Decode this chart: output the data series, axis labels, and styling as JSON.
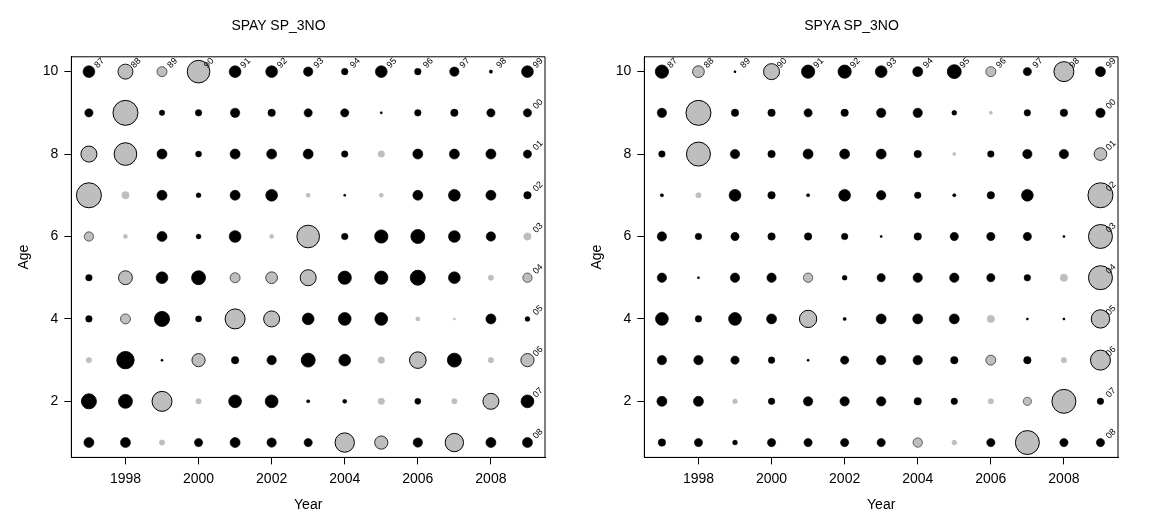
{
  "chart_data": [
    {
      "type": "bubble",
      "title": "SPAY SP_3NO",
      "xlabel": "Year",
      "ylabel": "Age",
      "xlim": [
        1996.52,
        2009.48
      ],
      "xticks": [
        1998,
        2000,
        2002,
        2004,
        2006,
        2008
      ],
      "ylim": [
        0.64,
        10.36
      ],
      "yticks": [
        2,
        4,
        6,
        8,
        10
      ],
      "grid": false,
      "legend": false,
      "marker": "circle",
      "series": [
        {
          "color": "#000000",
          "x": [
            1997,
            2001,
            2002,
            2003,
            2004,
            2005,
            2006,
            2007,
            2008,
            2009,
            1997,
            1999,
            2000,
            2001,
            2002,
            2003,
            2004,
            2005,
            2006,
            2007,
            2008,
            2009,
            1999,
            2000,
            2001,
            2002,
            2003,
            2004,
            2006,
            2007,
            2008,
            2009,
            1999,
            2000,
            2001,
            2002,
            2004,
            2006,
            2007,
            2008,
            2009,
            1999,
            2000,
            2001,
            2004,
            2005,
            2006,
            2007,
            2008,
            1997,
            1999,
            2000,
            2004,
            2005,
            2006,
            2007,
            1997,
            1999,
            2000,
            2003,
            2004,
            2005,
            2008,
            2009,
            1998,
            1999,
            2001,
            2002,
            2003,
            2004,
            2007,
            1997,
            1998,
            2001,
            2002,
            2003,
            2004,
            2006,
            2009,
            1997,
            1998,
            2000,
            2001,
            2002,
            2003,
            2006,
            2008,
            2009
          ],
          "values": [
            10,
            10,
            10,
            10,
            10,
            10,
            10,
            10,
            10,
            10,
            9,
            9,
            9,
            9,
            9,
            9,
            9,
            9,
            9,
            9,
            9,
            9,
            8,
            8,
            8,
            8,
            8,
            8,
            8,
            8,
            8,
            8,
            7,
            7,
            7,
            7,
            7,
            7,
            7,
            7,
            7,
            6,
            6,
            6,
            6,
            6,
            6,
            6,
            6,
            5,
            5,
            5,
            5,
            5,
            5,
            5,
            4,
            4,
            4,
            4,
            4,
            4,
            4,
            4,
            3,
            3,
            3,
            3,
            3,
            3,
            3,
            2,
            2,
            2,
            2,
            2,
            2,
            2,
            2,
            1,
            1,
            1,
            1,
            1,
            1,
            1,
            1,
            1
          ],
          "sizes": [
            0.22,
            0.22,
            0.22,
            0.14,
            0.07,
            0.22,
            0.07,
            0.14,
            0.02,
            0.22,
            0.11,
            0.05,
            0.07,
            0.14,
            0.09,
            0.11,
            0.11,
            0.01,
            0.07,
            0.09,
            0.11,
            0.11,
            0.16,
            0.06,
            0.16,
            0.16,
            0.16,
            0.07,
            0.16,
            0.16,
            0.16,
            0.11,
            0.16,
            0.04,
            0.16,
            0.22,
            0.01,
            0.16,
            0.22,
            0.16,
            0.09,
            0.16,
            0.04,
            0.22,
            0.07,
            0.28,
            0.31,
            0.22,
            0.14,
            0.07,
            0.22,
            0.31,
            0.28,
            0.28,
            0.36,
            0.22,
            0.07,
            0.36,
            0.06,
            0.22,
            0.26,
            0.26,
            0.16,
            0.04,
            0.48,
            0.01,
            0.09,
            0.14,
            0.31,
            0.22,
            0.31,
            0.36,
            0.31,
            0.26,
            0.26,
            0.02,
            0.03,
            0.06,
            0.26,
            0.16,
            0.16,
            0.11,
            0.16,
            0.14,
            0.11,
            0.14,
            0.16,
            0.16
          ]
        },
        {
          "color": "#bebebe",
          "x": [
            1998,
            1999,
            2000,
            1998,
            1997,
            1998,
            2005,
            1997,
            1998,
            2003,
            2005,
            1997,
            1998,
            2002,
            2003,
            2009,
            1998,
            2001,
            2002,
            2003,
            2008,
            2009,
            1998,
            2001,
            2002,
            2006,
            2007,
            1997,
            2000,
            2005,
            2006,
            2008,
            2009,
            1999,
            2000,
            2005,
            2007,
            2008,
            1999,
            2004,
            2005,
            2007
          ],
          "values": [
            10,
            10,
            10,
            9,
            8,
            8,
            8,
            7,
            7,
            7,
            7,
            6,
            6,
            6,
            6,
            6,
            5,
            5,
            5,
            5,
            5,
            5,
            4,
            4,
            4,
            4,
            4,
            3,
            3,
            3,
            3,
            3,
            3,
            2,
            2,
            2,
            2,
            2,
            1,
            1,
            1,
            1
          ],
          "sizes": [
            0.36,
            0.16,
            0.82,
            1,
            0.41,
            0.82,
            0.07,
            1,
            0.09,
            0.03,
            0.03,
            0.14,
            0.03,
            0.03,
            0.82,
            0.09,
            0.31,
            0.16,
            0.22,
            0.41,
            0.05,
            0.14,
            0.16,
            0.64,
            0.41,
            0.03,
            0.01,
            0.05,
            0.28,
            0.07,
            0.44,
            0.05,
            0.28,
            0.64,
            0.05,
            0.07,
            0.05,
            0.41,
            0.05,
            0.6,
            0.28,
            0.54
          ]
        }
      ],
      "annotations": [
        {
          "text": "87",
          "x": 1997,
          "y": 10
        },
        {
          "text": "88",
          "x": 1998,
          "y": 10
        },
        {
          "text": "89",
          "x": 1999,
          "y": 10
        },
        {
          "text": "90",
          "x": 2000,
          "y": 10
        },
        {
          "text": "91",
          "x": 2001,
          "y": 10
        },
        {
          "text": "92",
          "x": 2002,
          "y": 10
        },
        {
          "text": "93",
          "x": 2003,
          "y": 10
        },
        {
          "text": "94",
          "x": 2004,
          "y": 10
        },
        {
          "text": "95",
          "x": 2005,
          "y": 10
        },
        {
          "text": "96",
          "x": 2006,
          "y": 10
        },
        {
          "text": "97",
          "x": 2007,
          "y": 10
        },
        {
          "text": "98",
          "x": 2008,
          "y": 10
        },
        {
          "text": "99",
          "x": 2009,
          "y": 10
        },
        {
          "text": "00",
          "x": 2009,
          "y": 9
        },
        {
          "text": "01",
          "x": 2009,
          "y": 8
        },
        {
          "text": "02",
          "x": 2009,
          "y": 7
        },
        {
          "text": "03",
          "x": 2009,
          "y": 6
        },
        {
          "text": "04",
          "x": 2009,
          "y": 5
        },
        {
          "text": "05",
          "x": 2009,
          "y": 4
        },
        {
          "text": "06",
          "x": 2009,
          "y": 3
        },
        {
          "text": "07",
          "x": 2009,
          "y": 2
        },
        {
          "text": "08",
          "x": 2009,
          "y": 1
        }
      ]
    },
    {
      "type": "bubble",
      "title": "SPYA SP_3NO",
      "xlabel": "Year",
      "ylabel": "Age",
      "xlim": [
        1996.52,
        2009.48
      ],
      "xticks": [
        1998,
        2000,
        2002,
        2004,
        2006,
        2008
      ],
      "ylim": [
        0.64,
        10.36
      ],
      "yticks": [
        2,
        4,
        6,
        8,
        10
      ],
      "grid": false,
      "legend": false,
      "marker": "circle",
      "series": [
        {
          "color": "#000000",
          "x": [
            1997,
            1999,
            2001,
            2002,
            2003,
            2004,
            2005,
            2007,
            2009,
            1997,
            1999,
            2000,
            2001,
            2002,
            2003,
            2004,
            2005,
            2007,
            2008,
            2009,
            1997,
            1999,
            2000,
            2001,
            2002,
            2003,
            2004,
            2006,
            2007,
            2008,
            1997,
            1999,
            2000,
            2001,
            2002,
            2003,
            2004,
            2005,
            2006,
            2007,
            1997,
            1998,
            1999,
            2000,
            2001,
            2002,
            2003,
            2004,
            2005,
            2006,
            2007,
            2008,
            1997,
            1998,
            1999,
            2000,
            2002,
            2003,
            2004,
            2005,
            2006,
            2007,
            1997,
            1998,
            1999,
            2000,
            2002,
            2003,
            2004,
            2005,
            2007,
            2008,
            1997,
            1998,
            1999,
            2000,
            2001,
            2002,
            2003,
            2004,
            2005,
            2007,
            1997,
            1998,
            2000,
            2001,
            2002,
            2003,
            2004,
            2005,
            2009,
            1997,
            1998,
            1999,
            2000,
            2001,
            2002,
            2003,
            2006,
            2008,
            2009
          ],
          "values": [
            10,
            10,
            10,
            10,
            10,
            10,
            10,
            10,
            10,
            9,
            9,
            9,
            9,
            9,
            9,
            9,
            9,
            9,
            9,
            9,
            8,
            8,
            8,
            8,
            8,
            8,
            8,
            8,
            8,
            8,
            7,
            7,
            7,
            7,
            7,
            7,
            7,
            7,
            7,
            7,
            6,
            6,
            6,
            6,
            6,
            6,
            6,
            6,
            6,
            6,
            6,
            6,
            5,
            5,
            5,
            5,
            5,
            5,
            5,
            5,
            5,
            5,
            4,
            4,
            4,
            4,
            4,
            4,
            4,
            4,
            4,
            4,
            3,
            3,
            3,
            3,
            3,
            3,
            3,
            3,
            3,
            3,
            2,
            2,
            2,
            2,
            2,
            2,
            2,
            2,
            2,
            1,
            1,
            1,
            1,
            1,
            1,
            1,
            1,
            1,
            1
          ],
          "sizes": [
            0.28,
            0.01,
            0.28,
            0.28,
            0.22,
            0.16,
            0.31,
            0.11,
            0.16,
            0.14,
            0.09,
            0.09,
            0.11,
            0.09,
            0.14,
            0.14,
            0.04,
            0.07,
            0.09,
            0.14,
            0.07,
            0.14,
            0.09,
            0.16,
            0.16,
            0.16,
            0.09,
            0.07,
            0.14,
            0.14,
            0.02,
            0.22,
            0.09,
            0.02,
            0.22,
            0.14,
            0.07,
            0.02,
            0.09,
            0.22,
            0.14,
            0.07,
            0.11,
            0.09,
            0.09,
            0.07,
            0.01,
            0.09,
            0.11,
            0.11,
            0.11,
            0.01,
            0.14,
            0.01,
            0.14,
            0.14,
            0.04,
            0.11,
            0.14,
            0.14,
            0.11,
            0.07,
            0.26,
            0.07,
            0.26,
            0.16,
            0.02,
            0.16,
            0.16,
            0.16,
            0.01,
            0.01,
            0.14,
            0.14,
            0.11,
            0.07,
            0.01,
            0.11,
            0.14,
            0.14,
            0.09,
            0.09,
            0.16,
            0.16,
            0.07,
            0.14,
            0.14,
            0.14,
            0.09,
            0.07,
            0.07,
            0.09,
            0.11,
            0.04,
            0.11,
            0.11,
            0.11,
            0.11,
            0.11,
            0.11,
            0.11
          ]
        },
        {
          "color": "#bebebe",
          "x": [
            1998,
            2000,
            2006,
            2008,
            1998,
            2006,
            1998,
            2005,
            2009,
            1998,
            2009,
            2009,
            2001,
            2008,
            2009,
            2001,
            2006,
            2009,
            2006,
            2008,
            2009,
            1999,
            2006,
            2007,
            2008,
            2004,
            2005,
            2007
          ],
          "values": [
            10,
            10,
            10,
            10,
            9,
            9,
            8,
            8,
            8,
            7,
            7,
            6,
            5,
            5,
            5,
            4,
            4,
            4,
            3,
            3,
            3,
            2,
            2,
            2,
            2,
            1,
            1,
            1
          ],
          "sizes": [
            0.22,
            0.41,
            0.16,
            0.64,
            1,
            0.02,
            0.92,
            0.02,
            0.26,
            0.05,
            1,
            0.92,
            0.14,
            0.09,
            0.92,
            0.48,
            0.09,
            0.54,
            0.16,
            0.05,
            0.64,
            0.04,
            0.05,
            0.11,
            0.92,
            0.14,
            0.04,
            0.92
          ]
        }
      ],
      "annotations": [
        {
          "text": "87",
          "x": 1997,
          "y": 10
        },
        {
          "text": "88",
          "x": 1998,
          "y": 10
        },
        {
          "text": "89",
          "x": 1999,
          "y": 10
        },
        {
          "text": "90",
          "x": 2000,
          "y": 10
        },
        {
          "text": "91",
          "x": 2001,
          "y": 10
        },
        {
          "text": "92",
          "x": 2002,
          "y": 10
        },
        {
          "text": "93",
          "x": 2003,
          "y": 10
        },
        {
          "text": "94",
          "x": 2004,
          "y": 10
        },
        {
          "text": "95",
          "x": 2005,
          "y": 10
        },
        {
          "text": "96",
          "x": 2006,
          "y": 10
        },
        {
          "text": "97",
          "x": 2007,
          "y": 10
        },
        {
          "text": "98",
          "x": 2008,
          "y": 10
        },
        {
          "text": "99",
          "x": 2009,
          "y": 10
        },
        {
          "text": "00",
          "x": 2009,
          "y": 9
        },
        {
          "text": "01",
          "x": 2009,
          "y": 8
        },
        {
          "text": "02",
          "x": 2009,
          "y": 7
        },
        {
          "text": "03",
          "x": 2009,
          "y": 6
        },
        {
          "text": "04",
          "x": 2009,
          "y": 5
        },
        {
          "text": "05",
          "x": 2009,
          "y": 4
        },
        {
          "text": "06",
          "x": 2009,
          "y": 3
        },
        {
          "text": "07",
          "x": 2009,
          "y": 2
        },
        {
          "text": "08",
          "x": 2009,
          "y": 1
        }
      ]
    }
  ]
}
